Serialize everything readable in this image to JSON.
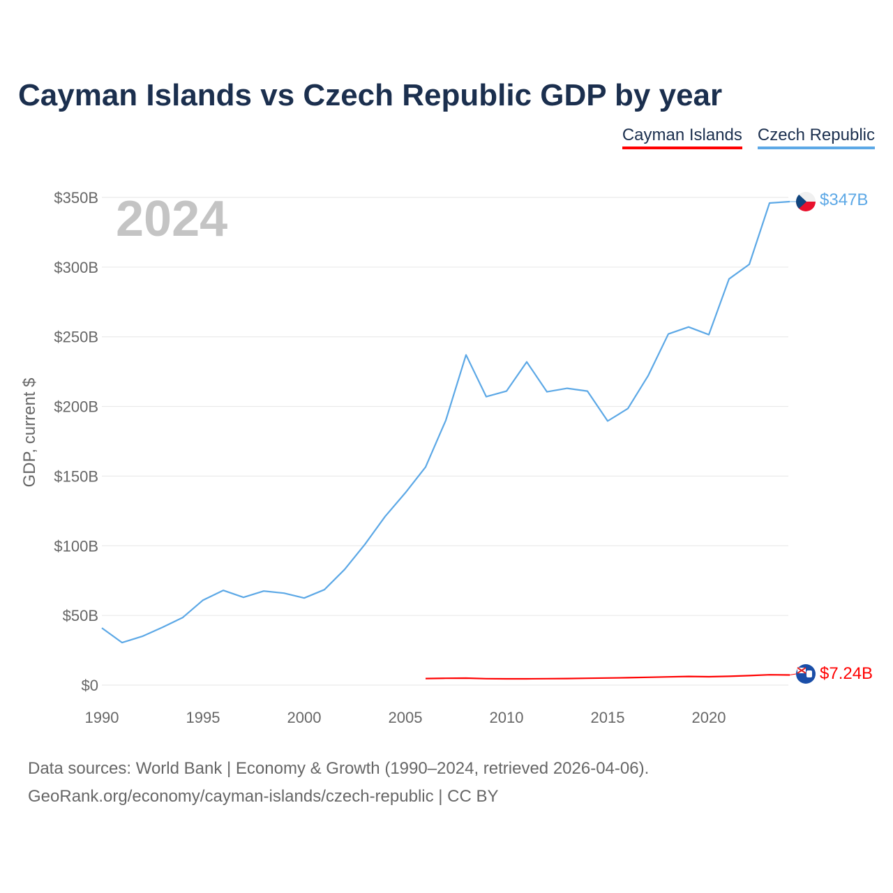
{
  "title": "Cayman Islands vs Czech Republic GDP by year",
  "legend": [
    {
      "label": "Cayman Islands",
      "color": "#ff0000"
    },
    {
      "label": "Czech Republic",
      "color": "#5ca8e6"
    }
  ],
  "year_badge": "2024",
  "end_labels": {
    "cayman": "$7.24B",
    "czech": "$347B"
  },
  "footer": {
    "line1": "Data sources: World Bank | Economy & Growth (1990–2024, retrieved 2026-04-06).",
    "line2": "GeoRank.org/economy/cayman-islands/czech-republic | CC BY"
  },
  "chart_data": {
    "type": "line",
    "ylabel": "GDP, current $",
    "xlim": [
      1990,
      2024
    ],
    "ylim": [
      0,
      350
    ],
    "y_unit": "billions USD",
    "x_ticks": [
      1990,
      1995,
      2000,
      2005,
      2010,
      2015,
      2020
    ],
    "y_ticks": [
      {
        "value": 0,
        "label": "$0"
      },
      {
        "value": 50,
        "label": "$50B"
      },
      {
        "value": 100,
        "label": "$100B"
      },
      {
        "value": 150,
        "label": "$150B"
      },
      {
        "value": 200,
        "label": "$200B"
      },
      {
        "value": 250,
        "label": "$250B"
      },
      {
        "value": 300,
        "label": "$300B"
      },
      {
        "value": 350,
        "label": "$350B"
      }
    ],
    "grid": true,
    "legend_position": "top-right",
    "series": [
      {
        "name": "Cayman Islands",
        "color": "#ff0000",
        "x": [
          2006,
          2007,
          2008,
          2009,
          2010,
          2011,
          2012,
          2013,
          2014,
          2015,
          2016,
          2017,
          2018,
          2019,
          2020,
          2021,
          2022,
          2023,
          2024
        ],
        "values": [
          4.7,
          4.9,
          5.0,
          4.6,
          4.5,
          4.5,
          4.6,
          4.7,
          4.9,
          5.1,
          5.3,
          5.6,
          5.9,
          6.2,
          6.0,
          6.3,
          6.8,
          7.4,
          7.24
        ]
      },
      {
        "name": "Czech Republic",
        "color": "#5ca8e6",
        "x": [
          1990,
          1991,
          1992,
          1993,
          1994,
          1995,
          1996,
          1997,
          1998,
          1999,
          2000,
          2001,
          2002,
          2003,
          2004,
          2005,
          2006,
          2007,
          2008,
          2009,
          2010,
          2011,
          2012,
          2013,
          2014,
          2015,
          2016,
          2017,
          2018,
          2019,
          2020,
          2021,
          2022,
          2023,
          2024
        ],
        "values": [
          41,
          30.5,
          35,
          41.5,
          48.5,
          61,
          68,
          63,
          67.5,
          66,
          62.5,
          68.5,
          83,
          101,
          121,
          138,
          156.5,
          190,
          237,
          207,
          211,
          232,
          210.5,
          213,
          211,
          189.5,
          198.5,
          222,
          252,
          257,
          251.5,
          291.5,
          302,
          346,
          347
        ]
      }
    ]
  }
}
